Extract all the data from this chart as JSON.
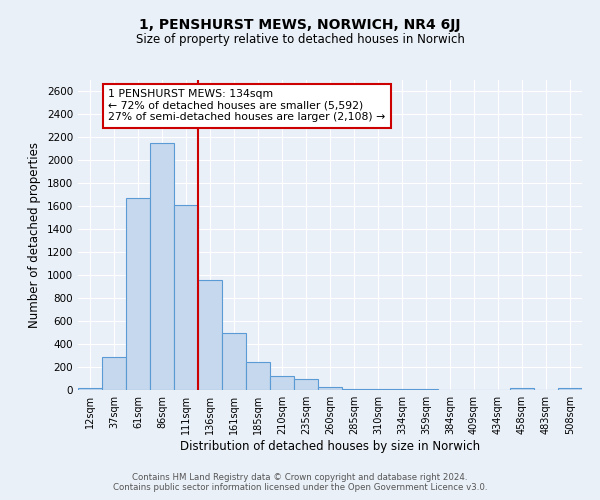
{
  "title_line1": "1, PENSHURST MEWS, NORWICH, NR4 6JJ",
  "title_line2": "Size of property relative to detached houses in Norwich",
  "xlabel": "Distribution of detached houses by size in Norwich",
  "ylabel": "Number of detached properties",
  "bar_labels": [
    "12sqm",
    "37sqm",
    "61sqm",
    "86sqm",
    "111sqm",
    "136sqm",
    "161sqm",
    "185sqm",
    "210sqm",
    "235sqm",
    "260sqm",
    "285sqm",
    "310sqm",
    "334sqm",
    "359sqm",
    "384sqm",
    "409sqm",
    "434sqm",
    "458sqm",
    "483sqm",
    "508sqm"
  ],
  "bar_values": [
    20,
    290,
    1670,
    2150,
    1610,
    960,
    500,
    240,
    120,
    95,
    30,
    10,
    10,
    5,
    5,
    3,
    2,
    2,
    15,
    2,
    20
  ],
  "bar_color": "#c5d8ed",
  "bar_edge_color": "#5b9bd5",
  "vline_x": 4.5,
  "vline_color": "#cc0000",
  "annotation_title": "1 PENSHURST MEWS: 134sqm",
  "annotation_line1": "← 72% of detached houses are smaller (5,592)",
  "annotation_line2": "27% of semi-detached houses are larger (2,108) →",
  "annotation_box_edge": "#cc0000",
  "ylim": [
    0,
    2700
  ],
  "yticks": [
    0,
    200,
    400,
    600,
    800,
    1000,
    1200,
    1400,
    1600,
    1800,
    2000,
    2200,
    2400,
    2600
  ],
  "footer_line1": "Contains HM Land Registry data © Crown copyright and database right 2024.",
  "footer_line2": "Contains public sector information licensed under the Open Government Licence v3.0.",
  "bg_color": "#eaf0f8",
  "plot_bg_color": "#eaf0f8"
}
